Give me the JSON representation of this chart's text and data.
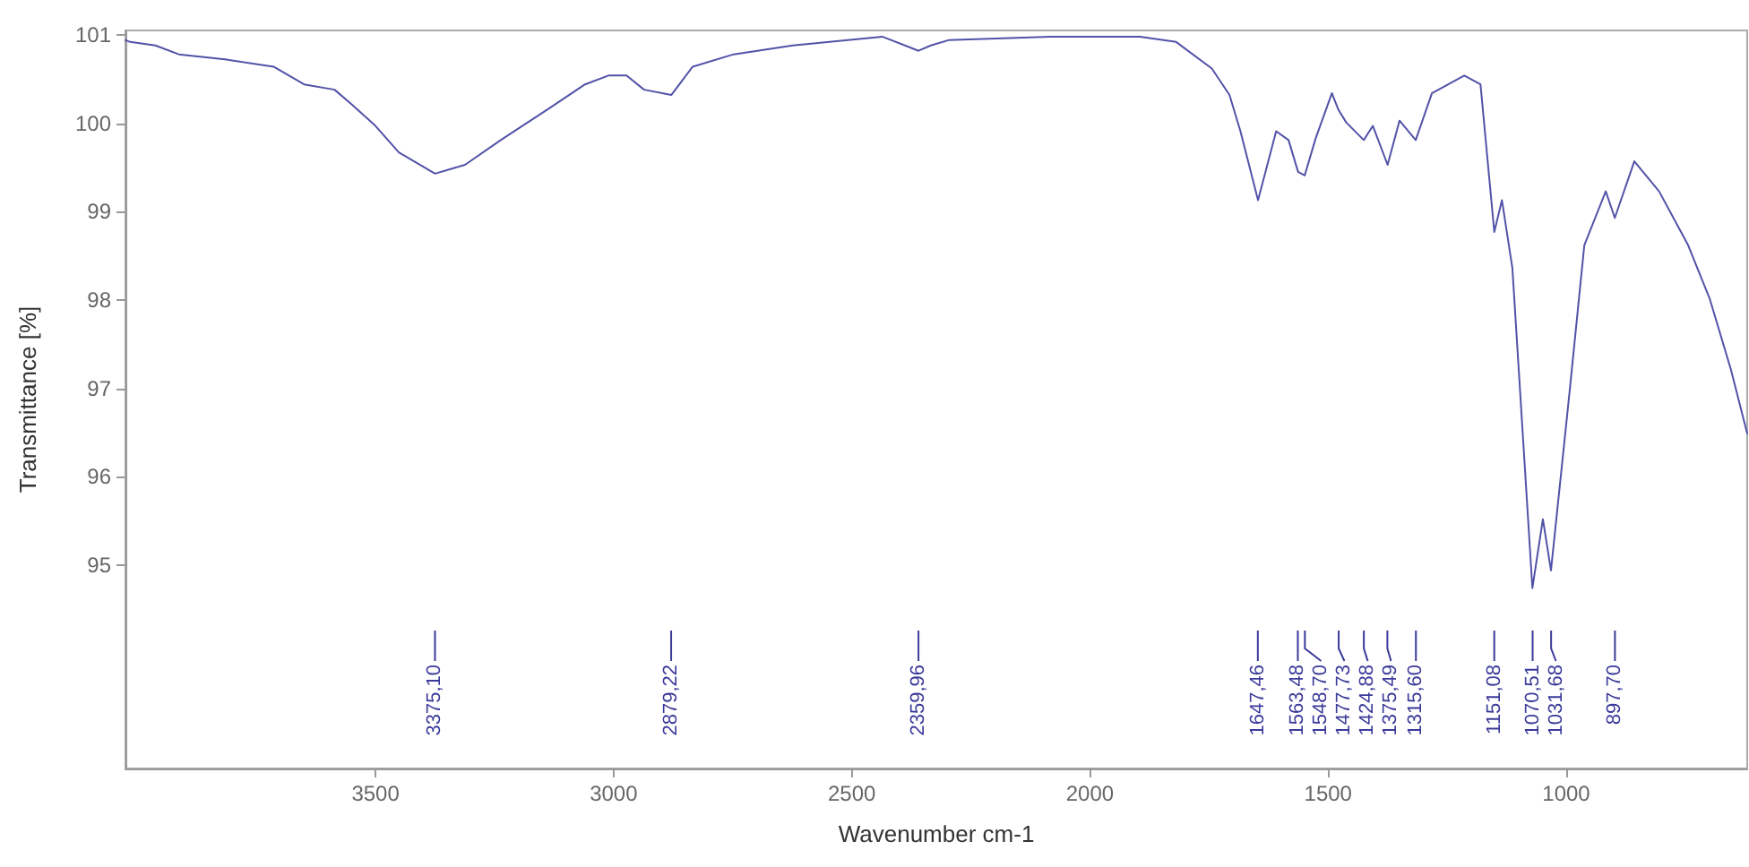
{
  "chart_data": {
    "type": "line",
    "xlabel": "Wavenumber cm-1",
    "ylabel": "Transmittance [%]",
    "xlim": [
      4025,
      620
    ],
    "xticks": [
      3500,
      3000,
      2500,
      2000,
      1500,
      1000
    ],
    "ylim": [
      92.7,
      101.05
    ],
    "yticks": [
      95,
      96,
      97,
      98,
      99,
      100,
      101
    ],
    "marker": "none",
    "line_style": "solid",
    "x": [
      4025,
      4015,
      3962,
      3913,
      3812,
      3714,
      3650,
      3586,
      3549,
      3500,
      3451,
      3375,
      3312,
      3237,
      3135,
      3060,
      3011,
      2973,
      2936,
      2879,
      2834,
      2748,
      2624,
      2436,
      2360,
      2334,
      2297,
      2083,
      1895,
      1819,
      1744,
      1707,
      1684,
      1647,
      1609,
      1583,
      1563,
      1549,
      1526,
      1492,
      1478,
      1462,
      1425,
      1406,
      1375,
      1350,
      1316,
      1282,
      1214,
      1180,
      1151,
      1135,
      1113,
      1071,
      1049,
      1032,
      992,
      962,
      917,
      898,
      857,
      805,
      744,
      699,
      654,
      620
    ],
    "series": [
      {
        "color": "#5252a8",
        "values": [
          100.94,
          100.92,
          100.88,
          100.78,
          100.72,
          100.64,
          100.44,
          100.38,
          100.21,
          99.97,
          99.67,
          99.43,
          99.53,
          99.81,
          100.17,
          100.44,
          100.54,
          100.54,
          100.38,
          100.32,
          100.64,
          100.78,
          100.88,
          100.98,
          100.82,
          100.88,
          100.94,
          100.98,
          100.98,
          100.92,
          100.62,
          100.32,
          99.91,
          99.13,
          99.91,
          99.81,
          99.45,
          99.41,
          99.83,
          100.34,
          100.15,
          100.01,
          99.81,
          99.97,
          99.53,
          100.03,
          99.81,
          100.34,
          100.54,
          100.44,
          98.77,
          99.13,
          98.36,
          94.74,
          95.52,
          94.94,
          97.01,
          98.62,
          99.23,
          98.93,
          99.57,
          99.23,
          98.62,
          98.02,
          97.21,
          96.49
        ]
      }
    ],
    "ref_lines": [
      {
        "axis": "x",
        "value": 3375.1,
        "label": "3375,10",
        "color": "#3a3a9a"
      },
      {
        "axis": "x",
        "value": 2879.22,
        "label": "2879,22",
        "color": "#3a3a9a"
      },
      {
        "axis": "x",
        "value": 2359.96,
        "label": "2359,96",
        "color": "#3a3a9a"
      },
      {
        "axis": "x",
        "value": 1647.46,
        "label": "1647,46",
        "color": "#3a3a9a"
      },
      {
        "axis": "x",
        "value": 1563.48,
        "label": "1563,48",
        "color": "#3a3a9a"
      },
      {
        "axis": "x",
        "value": 1548.7,
        "label": "1548,70",
        "color": "#3a3a9a"
      },
      {
        "axis": "x",
        "value": 1477.73,
        "label": "1477,73",
        "color": "#3a3a9a"
      },
      {
        "axis": "x",
        "value": 1424.88,
        "label": "1424,88",
        "color": "#3a3a9a"
      },
      {
        "axis": "x",
        "value": 1375.49,
        "label": "1375,49",
        "color": "#3a3a9a"
      },
      {
        "axis": "x",
        "value": 1315.6,
        "label": "1315,60",
        "color": "#3a3a9a"
      },
      {
        "axis": "x",
        "value": 1151.08,
        "label": "1151,08",
        "color": "#3a3a9a"
      },
      {
        "axis": "x",
        "value": 1070.51,
        "label": "1070,51",
        "color": "#3a3a9a"
      },
      {
        "axis": "x",
        "value": 1031.68,
        "label": "1031,68",
        "color": "#3a3a9a"
      },
      {
        "axis": "x",
        "value": 897.7,
        "label": "897,70",
        "color": "#3a3a9a"
      }
    ]
  }
}
